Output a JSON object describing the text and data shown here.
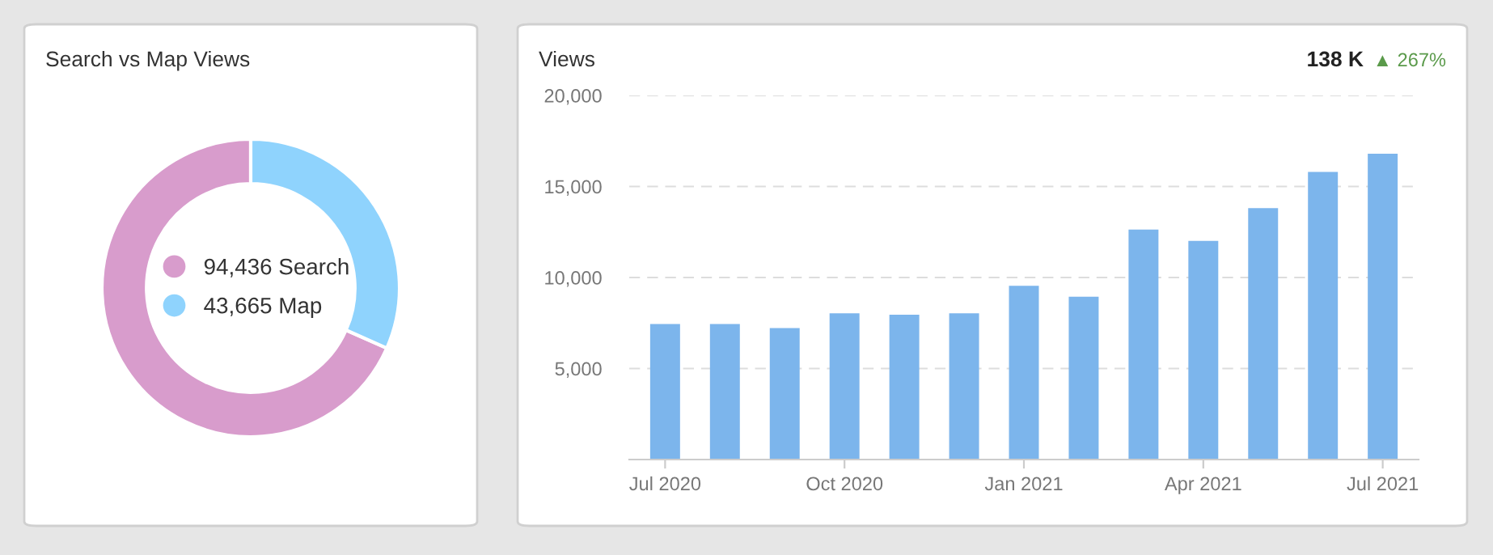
{
  "chart_data": [
    {
      "type": "donut",
      "title": "Search vs Map Views",
      "categories": [
        "Search",
        "Map"
      ],
      "values": [
        94436,
        43665
      ],
      "value_labels": [
        "94,436",
        "43,665"
      ],
      "colors": [
        "#d89ccc",
        "#8fd3fd"
      ],
      "legend": "center"
    },
    {
      "type": "bar",
      "title": "Views",
      "annotations": [
        "138 K",
        "▲ 267%"
      ],
      "categories": [
        "Jul 2020",
        null,
        null,
        "Oct 2020",
        null,
        null,
        "Jan 2021",
        null,
        null,
        "Apr 2021",
        null,
        null,
        "Jul 2021"
      ],
      "series": [
        {
          "color": "#7cb5ec",
          "values": [
            7440,
            7440,
            7220,
            8030,
            7960,
            8030,
            9540,
            8950,
            12630,
            12010,
            13810,
            15800,
            16800
          ]
        }
      ],
      "ylim": [
        0,
        20000
      ],
      "yticks": [
        {
          "value": 5000,
          "label": "5,000"
        },
        {
          "value": 10000,
          "label": "10,000"
        },
        {
          "value": 15000,
          "label": "15,000"
        },
        {
          "value": 20000,
          "label": "20,000"
        }
      ],
      "grid": "y"
    }
  ]
}
